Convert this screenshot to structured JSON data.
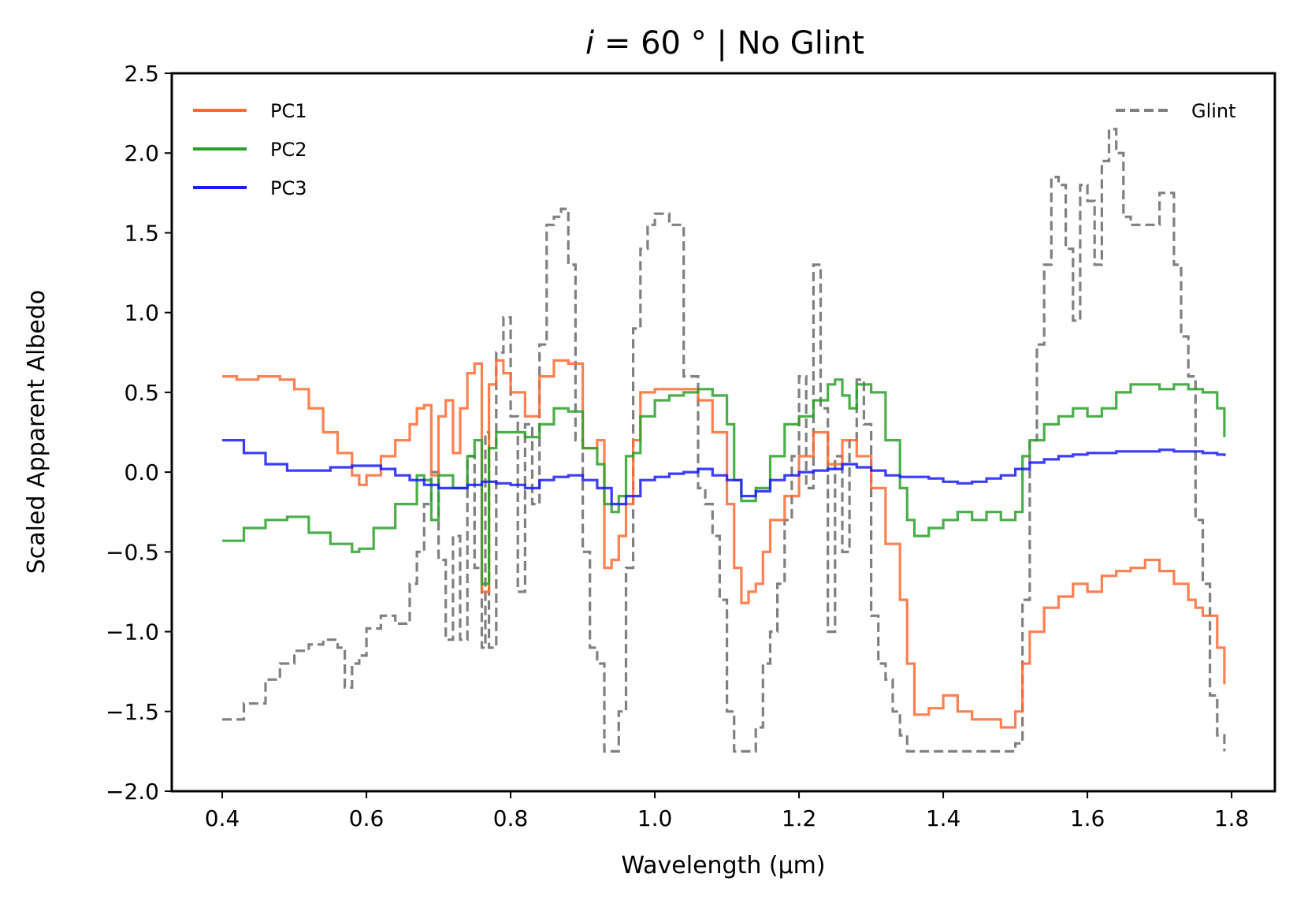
{
  "chart_data": {
    "type": "line",
    "title_italic": "i",
    "title_rest": " = 60 ° | No Glint",
    "xlabel": "Wavelength (µm)",
    "ylabel": "Scaled Apparent Albedo",
    "xlim": [
      0.33,
      1.86
    ],
    "ylim": [
      -2.0,
      2.5
    ],
    "xticks": [
      "0.4",
      "0.6",
      "0.8",
      "1.0",
      "1.2",
      "1.4",
      "1.6",
      "1.8"
    ],
    "yticks": [
      "2.5",
      "2.0",
      "1.5",
      "1.0",
      "0.5",
      "0.0",
      "−0.5",
      "−1.0",
      "−1.5",
      "−2.0"
    ],
    "legend_left": "top-left",
    "legend_right": "top-right",
    "series": [
      {
        "name": "PC1",
        "color": "#ff6a33",
        "style": "solid",
        "x": [
          0.4,
          0.42,
          0.45,
          0.48,
          0.5,
          0.52,
          0.54,
          0.56,
          0.58,
          0.59,
          0.6,
          0.62,
          0.64,
          0.66,
          0.67,
          0.68,
          0.69,
          0.7,
          0.71,
          0.72,
          0.73,
          0.74,
          0.75,
          0.76,
          0.77,
          0.78,
          0.79,
          0.8,
          0.82,
          0.84,
          0.86,
          0.88,
          0.9,
          0.92,
          0.93,
          0.94,
          0.95,
          0.96,
          0.97,
          0.98,
          1.0,
          1.02,
          1.04,
          1.06,
          1.08,
          1.1,
          1.11,
          1.12,
          1.13,
          1.14,
          1.15,
          1.16,
          1.18,
          1.2,
          1.22,
          1.24,
          1.26,
          1.28,
          1.3,
          1.32,
          1.34,
          1.35,
          1.36,
          1.38,
          1.4,
          1.42,
          1.44,
          1.46,
          1.48,
          1.49,
          1.5,
          1.51,
          1.52,
          1.54,
          1.56,
          1.58,
          1.6,
          1.62,
          1.64,
          1.66,
          1.68,
          1.7,
          1.72,
          1.74,
          1.75,
          1.76,
          1.78,
          1.79
        ],
        "y": [
          0.6,
          0.58,
          0.6,
          0.58,
          0.52,
          0.4,
          0.25,
          0.12,
          -0.02,
          -0.08,
          -0.02,
          0.1,
          0.2,
          0.3,
          0.4,
          0.42,
          -0.02,
          0.35,
          0.45,
          0.12,
          0.4,
          0.62,
          0.68,
          -0.75,
          0.55,
          0.7,
          0.62,
          0.5,
          0.35,
          0.6,
          0.7,
          0.68,
          0.15,
          0.2,
          -0.6,
          -0.55,
          -0.4,
          -0.2,
          0.2,
          0.5,
          0.52,
          0.52,
          0.52,
          0.45,
          0.25,
          -0.2,
          -0.6,
          -0.82,
          -0.75,
          -0.7,
          -0.5,
          -0.3,
          -0.15,
          0.1,
          0.25,
          0.05,
          0.2,
          0.1,
          -0.1,
          -0.45,
          -0.8,
          -1.2,
          -1.52,
          -1.48,
          -1.4,
          -1.5,
          -1.55,
          -1.55,
          -1.6,
          -1.6,
          -1.5,
          -1.2,
          -1.0,
          -0.85,
          -0.78,
          -0.7,
          -0.75,
          -0.65,
          -0.62,
          -0.6,
          -0.55,
          -0.62,
          -0.7,
          -0.8,
          -0.85,
          -0.9,
          -1.1,
          -1.33
        ]
      },
      {
        "name": "PC2",
        "color": "#2ca02c",
        "style": "solid",
        "x": [
          0.4,
          0.43,
          0.46,
          0.49,
          0.52,
          0.55,
          0.58,
          0.59,
          0.61,
          0.64,
          0.67,
          0.68,
          0.69,
          0.7,
          0.72,
          0.74,
          0.75,
          0.76,
          0.77,
          0.78,
          0.8,
          0.82,
          0.84,
          0.86,
          0.88,
          0.9,
          0.92,
          0.93,
          0.94,
          0.95,
          0.96,
          0.97,
          0.98,
          1.0,
          1.02,
          1.04,
          1.06,
          1.08,
          1.1,
          1.11,
          1.12,
          1.14,
          1.16,
          1.18,
          1.2,
          1.22,
          1.24,
          1.25,
          1.26,
          1.27,
          1.28,
          1.3,
          1.32,
          1.34,
          1.35,
          1.36,
          1.38,
          1.4,
          1.42,
          1.44,
          1.46,
          1.48,
          1.5,
          1.51,
          1.52,
          1.54,
          1.56,
          1.58,
          1.6,
          1.62,
          1.64,
          1.66,
          1.68,
          1.7,
          1.72,
          1.74,
          1.76,
          1.78,
          1.79
        ],
        "y": [
          -0.43,
          -0.35,
          -0.3,
          -0.28,
          -0.38,
          -0.45,
          -0.5,
          -0.48,
          -0.35,
          -0.2,
          -0.02,
          -0.05,
          -0.3,
          -0.02,
          -0.1,
          0.1,
          0.2,
          -0.7,
          0.15,
          0.25,
          0.25,
          0.22,
          0.3,
          0.4,
          0.38,
          0.15,
          0.05,
          -0.2,
          -0.25,
          -0.15,
          0.1,
          0.12,
          0.35,
          0.45,
          0.48,
          0.5,
          0.52,
          0.48,
          0.3,
          -0.05,
          -0.18,
          -0.1,
          0.1,
          0.3,
          0.35,
          0.45,
          0.55,
          0.58,
          0.48,
          0.4,
          0.55,
          0.5,
          0.2,
          -0.1,
          -0.3,
          -0.4,
          -0.35,
          -0.3,
          -0.25,
          -0.3,
          -0.25,
          -0.3,
          -0.25,
          0.1,
          0.2,
          0.3,
          0.35,
          0.4,
          0.35,
          0.4,
          0.5,
          0.55,
          0.55,
          0.52,
          0.55,
          0.52,
          0.5,
          0.4,
          0.22
        ]
      },
      {
        "name": "PC3",
        "color": "#1a1aff",
        "style": "solid",
        "x": [
          0.4,
          0.43,
          0.46,
          0.49,
          0.52,
          0.55,
          0.58,
          0.6,
          0.62,
          0.64,
          0.66,
          0.68,
          0.7,
          0.72,
          0.74,
          0.76,
          0.78,
          0.8,
          0.82,
          0.84,
          0.86,
          0.88,
          0.9,
          0.92,
          0.94,
          0.96,
          0.98,
          1.0,
          1.02,
          1.04,
          1.06,
          1.08,
          1.1,
          1.12,
          1.14,
          1.16,
          1.18,
          1.2,
          1.22,
          1.24,
          1.26,
          1.28,
          1.3,
          1.32,
          1.34,
          1.36,
          1.38,
          1.4,
          1.42,
          1.44,
          1.46,
          1.48,
          1.5,
          1.52,
          1.54,
          1.56,
          1.58,
          1.6,
          1.62,
          1.64,
          1.66,
          1.68,
          1.7,
          1.72,
          1.74,
          1.76,
          1.78,
          1.79
        ],
        "y": [
          0.2,
          0.12,
          0.05,
          0.01,
          0.01,
          0.03,
          0.04,
          0.04,
          0.02,
          -0.02,
          -0.05,
          -0.08,
          -0.1,
          -0.1,
          -0.08,
          -0.06,
          -0.07,
          -0.08,
          -0.1,
          -0.05,
          -0.03,
          -0.02,
          -0.05,
          -0.1,
          -0.2,
          -0.15,
          -0.05,
          -0.03,
          -0.01,
          0.0,
          0.02,
          -0.02,
          -0.05,
          -0.15,
          -0.12,
          -0.05,
          -0.02,
          0.0,
          0.01,
          0.02,
          0.05,
          0.03,
          0.01,
          -0.02,
          -0.03,
          -0.03,
          -0.04,
          -0.06,
          -0.07,
          -0.06,
          -0.04,
          -0.02,
          0.02,
          0.06,
          0.08,
          0.1,
          0.11,
          0.12,
          0.12,
          0.13,
          0.13,
          0.13,
          0.14,
          0.13,
          0.13,
          0.12,
          0.11,
          0.1
        ]
      },
      {
        "name": "Glint",
        "color": "#808080",
        "style": "dashed",
        "x": [
          0.4,
          0.43,
          0.46,
          0.48,
          0.5,
          0.52,
          0.54,
          0.56,
          0.57,
          0.58,
          0.59,
          0.6,
          0.62,
          0.64,
          0.66,
          0.67,
          0.68,
          0.69,
          0.7,
          0.71,
          0.72,
          0.73,
          0.74,
          0.75,
          0.76,
          0.765,
          0.77,
          0.78,
          0.79,
          0.8,
          0.81,
          0.82,
          0.83,
          0.84,
          0.85,
          0.86,
          0.87,
          0.88,
          0.89,
          0.9,
          0.91,
          0.92,
          0.93,
          0.94,
          0.95,
          0.96,
          0.97,
          0.98,
          0.99,
          1.0,
          1.02,
          1.04,
          1.06,
          1.07,
          1.08,
          1.09,
          1.1,
          1.11,
          1.12,
          1.13,
          1.14,
          1.15,
          1.16,
          1.17,
          1.18,
          1.19,
          1.2,
          1.21,
          1.22,
          1.23,
          1.24,
          1.25,
          1.26,
          1.27,
          1.28,
          1.29,
          1.3,
          1.31,
          1.32,
          1.33,
          1.34,
          1.35,
          1.36,
          1.38,
          1.4,
          1.44,
          1.48,
          1.5,
          1.51,
          1.52,
          1.53,
          1.54,
          1.55,
          1.56,
          1.57,
          1.58,
          1.59,
          1.6,
          1.61,
          1.62,
          1.63,
          1.64,
          1.65,
          1.66,
          1.68,
          1.7,
          1.72,
          1.73,
          1.74,
          1.75,
          1.76,
          1.77,
          1.78,
          1.79
        ],
        "y": [
          -1.55,
          -1.45,
          -1.3,
          -1.2,
          -1.12,
          -1.08,
          -1.05,
          -1.1,
          -1.35,
          -1.2,
          -1.15,
          -0.98,
          -0.9,
          -0.95,
          -0.7,
          -0.5,
          -0.2,
          0.0,
          -0.55,
          -1.05,
          -0.4,
          -1.05,
          0.1,
          -0.6,
          -1.1,
          0.25,
          -1.1,
          0.75,
          0.97,
          0.35,
          -0.75,
          0.3,
          -0.2,
          0.8,
          1.55,
          1.6,
          1.65,
          1.3,
          0.2,
          -0.5,
          -1.1,
          -1.2,
          -1.75,
          -1.75,
          -1.5,
          -0.6,
          0.9,
          1.4,
          1.55,
          1.62,
          1.55,
          0.6,
          -0.1,
          -0.2,
          -0.4,
          -0.8,
          -1.5,
          -1.75,
          -1.75,
          -1.75,
          -1.6,
          -1.2,
          -1.0,
          -0.7,
          -0.3,
          0.1,
          0.6,
          -0.1,
          1.3,
          0.4,
          -1.0,
          0.1,
          -0.5,
          0.2,
          0.58,
          0.3,
          -0.9,
          -1.2,
          -1.3,
          -1.5,
          -1.65,
          -1.75,
          -1.75,
          -1.75,
          -1.75,
          -1.75,
          -1.75,
          -1.7,
          -0.8,
          0.2,
          0.8,
          1.3,
          1.85,
          1.8,
          1.4,
          0.95,
          1.8,
          1.7,
          1.3,
          1.95,
          2.15,
          2.0,
          1.6,
          1.55,
          1.55,
          1.75,
          1.3,
          0.85,
          0.6,
          -0.3,
          -0.7,
          -1.4,
          -1.65,
          -1.75
        ]
      }
    ]
  }
}
